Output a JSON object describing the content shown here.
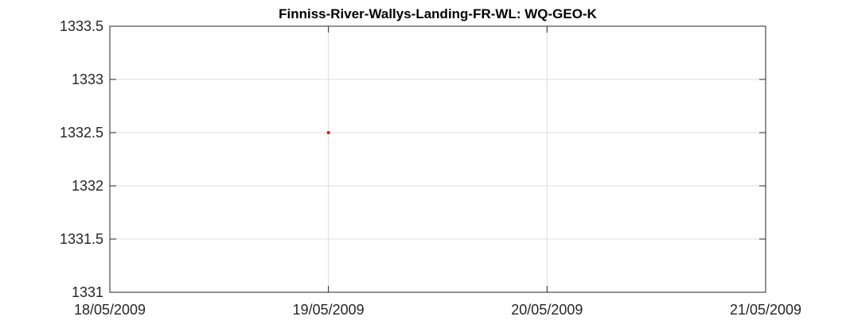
{
  "chart_data": {
    "type": "scatter",
    "title": "Finniss-River-Wallys-Landing-FR-WL: WQ-GEO-K",
    "xlabel": "",
    "ylabel": "",
    "x_ticks": [
      "18/05/2009",
      "19/05/2009",
      "20/05/2009",
      "21/05/2009"
    ],
    "xlim": [
      "18/05/2009",
      "21/05/2009"
    ],
    "y_ticks": [
      "1331",
      "1331.5",
      "1332",
      "1332.5",
      "1333",
      "1333.5"
    ],
    "ylim": [
      1331,
      1333.5
    ],
    "grid": true,
    "series": [
      {
        "color": "#ff0000",
        "points": [
          {
            "x": "19/05/2009",
            "y": 1332.5
          }
        ]
      }
    ]
  }
}
